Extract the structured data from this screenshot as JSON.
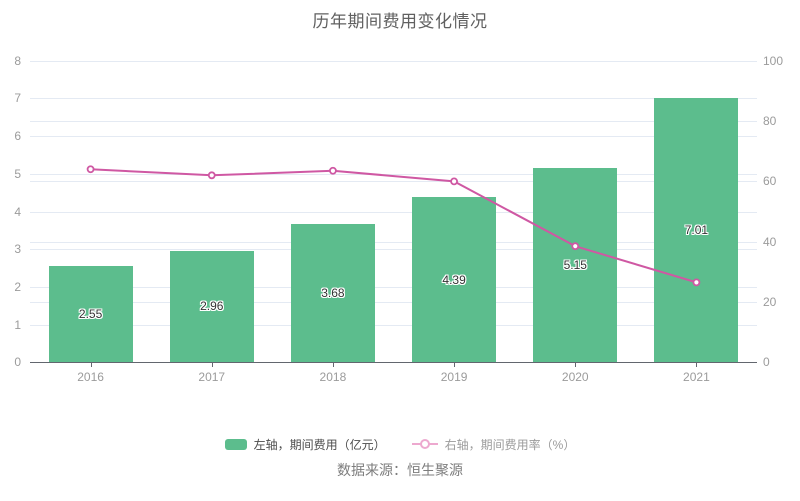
{
  "title": "历年期间费用变化情况",
  "source": "数据来源：恒生聚源",
  "legend": {
    "bar_label": "左轴，期间费用（亿元）",
    "line_label": "右轴，期间费用率（%）"
  },
  "colors": {
    "bar": "#5cbd8d",
    "line": "#cf58a3",
    "legend_line": "#eda9cf",
    "grid": "#e4eaf3",
    "axis": "#62666e",
    "axis_text": "#9b9b9b",
    "bar_label_text": "#333333",
    "title_text": "#606060"
  },
  "chart_data": {
    "type": "bar",
    "subtype": "bar-line-combo",
    "title": "历年期间费用变化情况",
    "categories": [
      "2016",
      "2017",
      "2018",
      "2019",
      "2020",
      "2021"
    ],
    "series": [
      {
        "name": "左轴，期间费用（亿元）",
        "type": "bar",
        "axis": "left",
        "values": [
          2.55,
          2.96,
          3.68,
          4.39,
          5.15,
          7.01
        ],
        "data_labels": [
          "2.55",
          "2.96",
          "3.68",
          "4.39",
          "5.15",
          "7.01"
        ]
      },
      {
        "name": "右轴，期间费用率（%）",
        "type": "line",
        "axis": "right",
        "values": [
          64,
          62,
          63.5,
          60,
          38.5,
          26.5
        ]
      }
    ],
    "left_axis": {
      "range": [
        0,
        8
      ],
      "ticks": [
        0,
        1,
        2,
        3,
        4,
        5,
        6,
        7,
        8
      ]
    },
    "right_axis": {
      "range": [
        0,
        100
      ],
      "ticks": [
        0,
        20,
        40,
        60,
        80,
        100
      ]
    },
    "grid": true,
    "legend_position": "bottom",
    "xlabel": "",
    "ylabel": ""
  }
}
